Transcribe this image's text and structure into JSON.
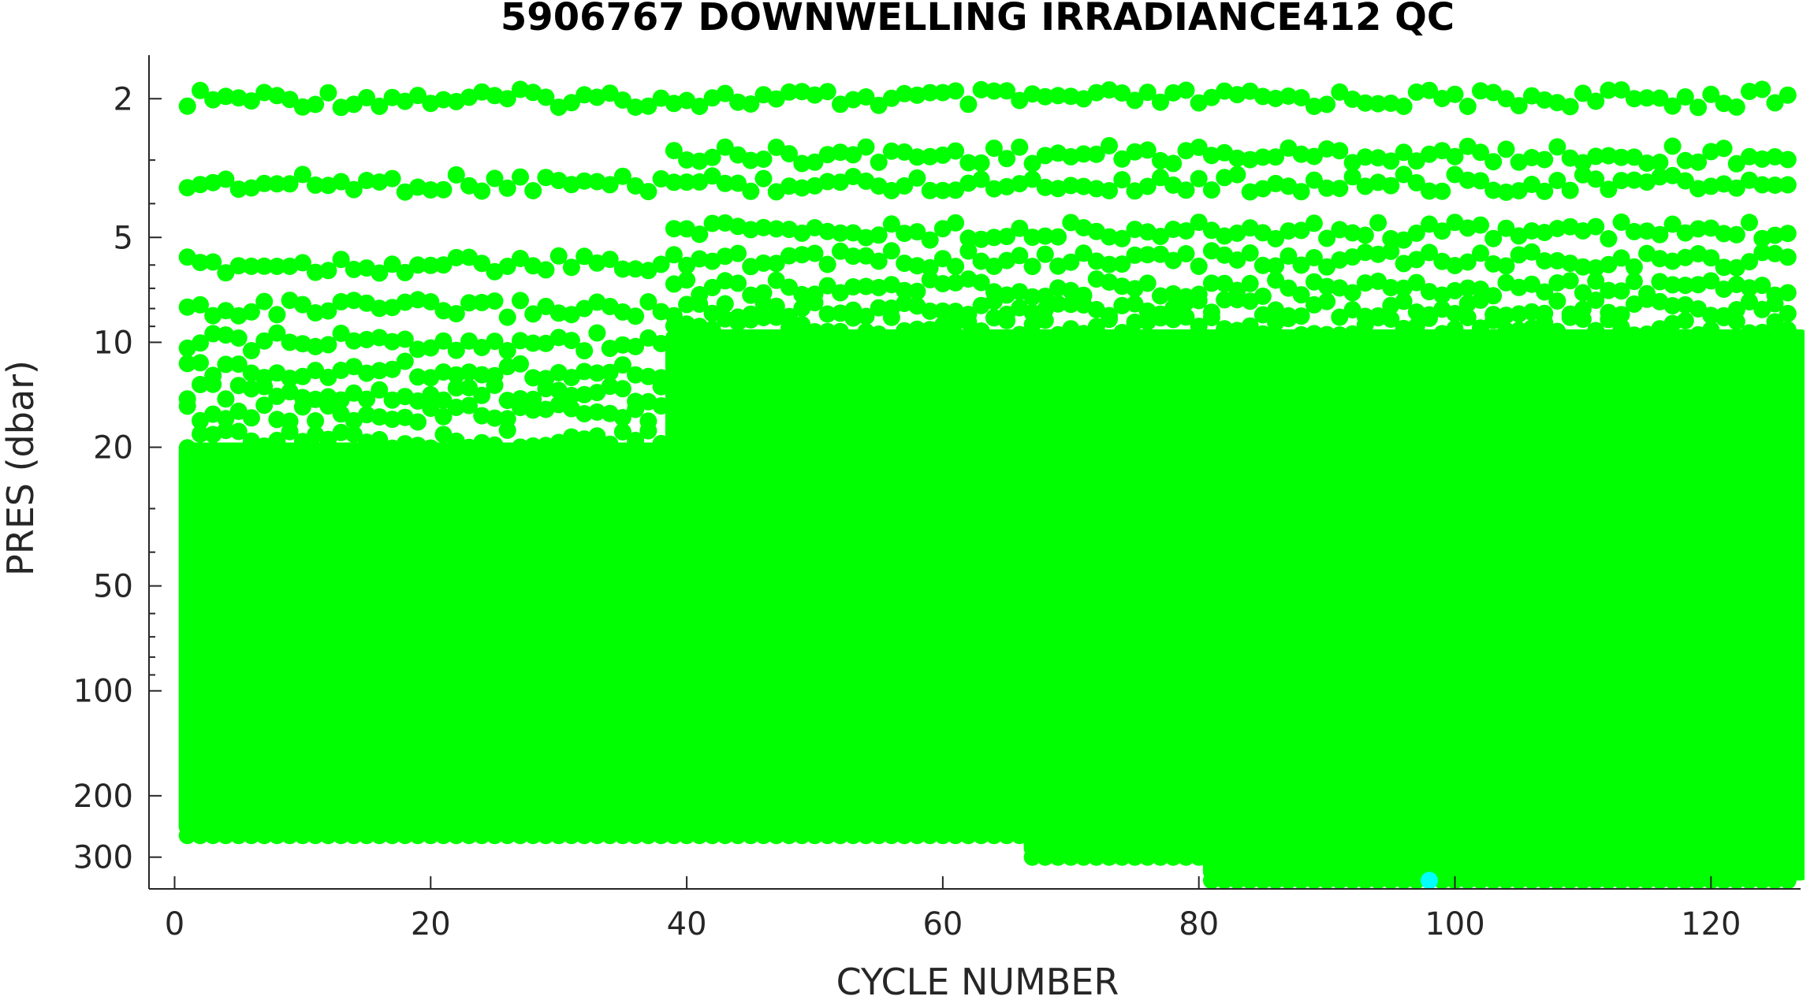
{
  "chart_data": {
    "type": "scatter",
    "title": "5906767  DOWNWELLING IRRADIANCE412 QC",
    "xlabel": "CYCLE NUMBER",
    "ylabel": "PRES (dbar)",
    "x_ticks": [
      0,
      20,
      40,
      60,
      80,
      100,
      120
    ],
    "y_ticks": [
      2,
      5,
      10,
      20,
      50,
      100,
      200,
      300
    ],
    "y_scale": "log",
    "y_reversed": true,
    "xlim": [
      -2,
      127
    ],
    "ylim": [
      1.5,
      370
    ],
    "grid": false,
    "colors": {
      "qc_good": "#00ff00",
      "qc_other": "#00ffff",
      "axis": "#262626"
    },
    "series": [
      {
        "profile_segments": [
          {
            "cycle_start": 1,
            "cycle_end": 38,
            "pres_min": 2.0,
            "pres_max": 260,
            "levels": [
              2.0,
              3.5,
              6.0,
              8.0,
              10.0,
              12.0,
              14.0,
              16.0,
              19.0
            ]
          },
          {
            "cycle_start": 39,
            "cycle_end": 66,
            "pres_min": 2.0,
            "pres_max": 260,
            "levels": [
              2.0,
              2.9,
              3.5,
              4.8,
              5.8,
              7.0,
              8.0,
              9.0
            ]
          },
          {
            "cycle_start": 67,
            "cycle_end": 80,
            "pres_min": 2.0,
            "pres_max": 300,
            "levels": [
              2.0,
              2.9,
              3.5,
              4.8,
              5.8,
              7.0,
              8.0,
              9.0
            ]
          },
          {
            "cycle_start": 81,
            "cycle_end": 126,
            "pres_min": 2.0,
            "pres_max": 350,
            "levels": [
              2.0,
              2.9,
              3.5,
              4.8,
              5.8,
              7.0,
              8.0,
              9.0
            ]
          }
        ]
      },
      {
        "points": [
          {
            "x": 98,
            "y": 350
          }
        ]
      }
    ]
  }
}
